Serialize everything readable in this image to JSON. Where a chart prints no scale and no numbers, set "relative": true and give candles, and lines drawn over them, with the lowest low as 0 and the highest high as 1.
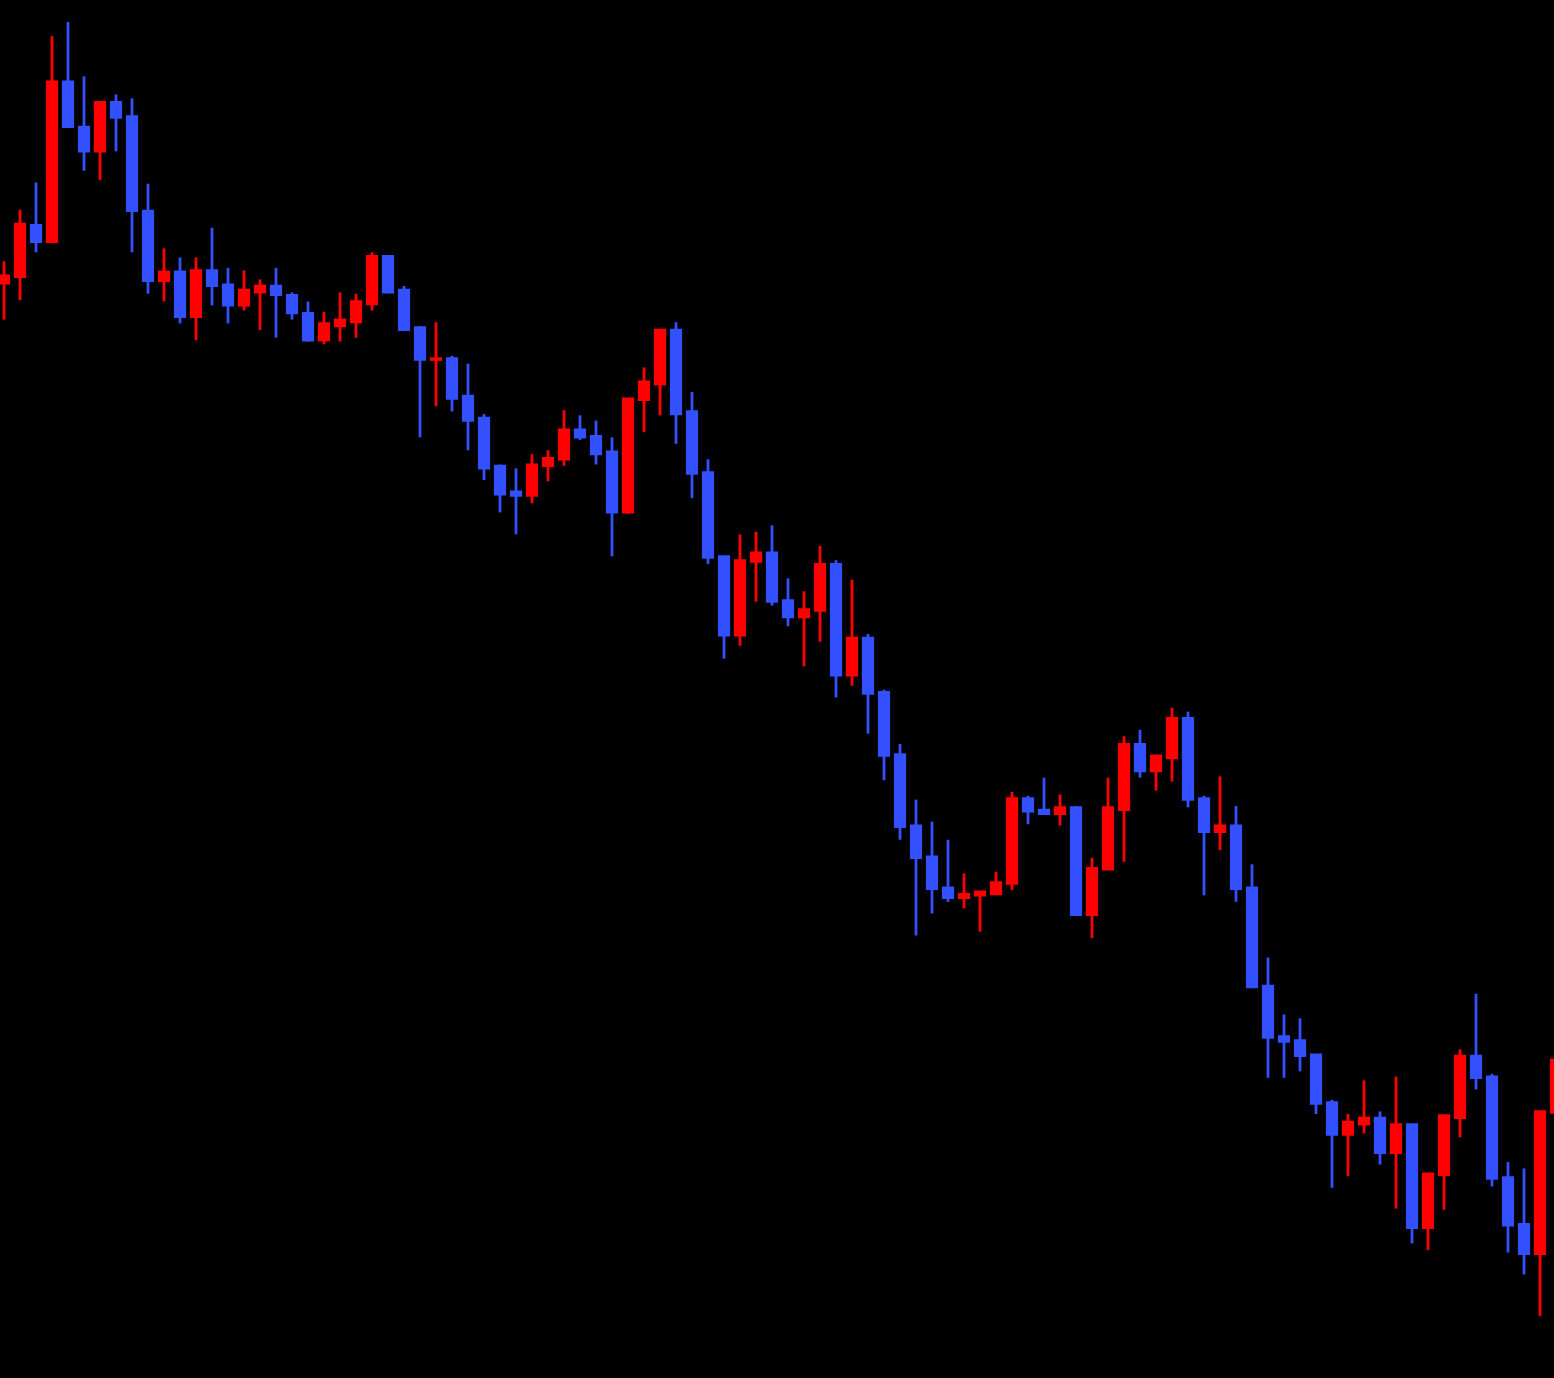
{
  "chart_data": {
    "type": "candlestick",
    "relative": true,
    "categories": [
      null,
      null,
      null,
      null,
      null,
      null,
      null,
      null,
      null,
      null,
      null,
      null,
      null,
      null,
      null,
      null,
      null,
      null,
      null,
      null,
      null,
      null,
      null,
      null,
      null,
      null,
      null,
      null,
      null,
      null,
      null,
      null,
      null,
      null,
      null,
      null,
      null,
      null,
      null,
      null,
      null,
      null,
      null,
      null,
      null,
      null,
      null,
      null,
      null,
      null,
      null,
      null,
      null,
      null,
      null,
      null,
      null,
      null,
      null,
      null,
      null,
      null,
      null,
      null,
      null,
      null,
      null,
      null,
      null,
      null,
      null,
      null,
      null,
      null,
      null,
      null,
      null,
      null,
      null,
      null,
      null,
      null,
      null,
      null,
      null,
      null,
      null,
      null,
      null,
      null,
      null,
      null,
      null,
      null,
      null,
      null,
      null,
      null
    ],
    "ohlc": [
      [
        0.798,
        0.815,
        0.77,
        0.804
      ],
      [
        0.803,
        0.855,
        0.785,
        0.844
      ],
      [
        0.843,
        0.876,
        0.822,
        0.83
      ],
      [
        0.83,
        0.989,
        0.829,
        0.954
      ],
      [
        0.954,
        1.0,
        0.919,
        0.919
      ],
      [
        0.919,
        0.958,
        0.885,
        0.9
      ],
      [
        0.9,
        0.938,
        0.878,
        0.938
      ],
      [
        0.938,
        0.944,
        0.9,
        0.926
      ],
      [
        0.927,
        0.941,
        0.822,
        0.854
      ],
      [
        0.854,
        0.875,
        0.79,
        0.8
      ],
      [
        0.8,
        0.825,
        0.784,
        0.807
      ],
      [
        0.807,
        0.818,
        0.767,
        0.772
      ],
      [
        0.772,
        0.818,
        0.754,
        0.808
      ],
      [
        0.808,
        0.841,
        0.781,
        0.796
      ],
      [
        0.797,
        0.81,
        0.767,
        0.781
      ],
      [
        0.781,
        0.808,
        0.777,
        0.793
      ],
      [
        0.791,
        0.801,
        0.762,
        0.796
      ],
      [
        0.796,
        0.81,
        0.756,
        0.789
      ],
      [
        0.789,
        0.791,
        0.77,
        0.775
      ],
      [
        0.775,
        0.784,
        0.753,
        0.754
      ],
      [
        0.754,
        0.776,
        0.751,
        0.767
      ],
      [
        0.765,
        0.791,
        0.753,
        0.77
      ],
      [
        0.768,
        0.79,
        0.756,
        0.784
      ],
      [
        0.782,
        0.822,
        0.777,
        0.819
      ],
      [
        0.819,
        0.819,
        0.791,
        0.791
      ],
      [
        0.793,
        0.796,
        0.762,
        0.762
      ],
      [
        0.764,
        0.765,
        0.679,
        0.739
      ],
      [
        0.739,
        0.768,
        0.703,
        0.74
      ],
      [
        0.74,
        0.742,
        0.699,
        0.709
      ],
      [
        0.711,
        0.736,
        0.669,
        0.692
      ],
      [
        0.694,
        0.697,
        0.646,
        0.655
      ],
      [
        0.657,
        0.658,
        0.621,
        0.635
      ],
      [
        0.637,
        0.655,
        0.604,
        0.634
      ],
      [
        0.634,
        0.666,
        0.628,
        0.658
      ],
      [
        0.657,
        0.669,
        0.645,
        0.663
      ],
      [
        0.662,
        0.7,
        0.657,
        0.685
      ],
      [
        0.685,
        0.696,
        0.677,
        0.679
      ],
      [
        0.68,
        0.692,
        0.658,
        0.666
      ],
      [
        0.668,
        0.679,
        0.587,
        0.621
      ],
      [
        0.621,
        0.709,
        0.62,
        0.709
      ],
      [
        0.708,
        0.733,
        0.683,
        0.722
      ],
      [
        0.72,
        0.762,
        0.696,
        0.762
      ],
      [
        0.762,
        0.768,
        0.674,
        0.697
      ],
      [
        0.699,
        0.714,
        0.632,
        0.651
      ],
      [
        0.652,
        0.662,
        0.581,
        0.586
      ],
      [
        0.587,
        0.587,
        0.508,
        0.526
      ],
      [
        0.526,
        0.604,
        0.518,
        0.584
      ],
      [
        0.583,
        0.606,
        0.552,
        0.59
      ],
      [
        0.59,
        0.611,
        0.549,
        0.552
      ],
      [
        0.553,
        0.57,
        0.533,
        0.54
      ],
      [
        0.54,
        0.56,
        0.502,
        0.546
      ],
      [
        0.545,
        0.595,
        0.521,
        0.581
      ],
      [
        0.581,
        0.584,
        0.478,
        0.495
      ],
      [
        0.495,
        0.569,
        0.487,
        0.524
      ],
      [
        0.524,
        0.527,
        0.45,
        0.481
      ],
      [
        0.482,
        0.484,
        0.414,
        0.433
      ],
      [
        0.434,
        0.442,
        0.368,
        0.378
      ],
      [
        0.379,
        0.399,
        0.294,
        0.354
      ],
      [
        0.355,
        0.382,
        0.311,
        0.33
      ],
      [
        0.331,
        0.368,
        0.32,
        0.323
      ],
      [
        0.323,
        0.342,
        0.315,
        0.326
      ],
      [
        0.325,
        0.328,
        0.297,
        0.328
      ],
      [
        0.326,
        0.343,
        0.326,
        0.335
      ],
      [
        0.334,
        0.405,
        0.329,
        0.4
      ],
      [
        0.4,
        0.402,
        0.38,
        0.39
      ],
      [
        0.391,
        0.416,
        0.388,
        0.388
      ],
      [
        0.388,
        0.403,
        0.379,
        0.393
      ],
      [
        0.393,
        0.394,
        0.31,
        0.31
      ],
      [
        0.31,
        0.354,
        0.292,
        0.346
      ],
      [
        0.345,
        0.416,
        0.345,
        0.393
      ],
      [
        0.391,
        0.448,
        0.351,
        0.442
      ],
      [
        0.442,
        0.453,
        0.416,
        0.421
      ],
      [
        0.421,
        0.433,
        0.406,
        0.433
      ],
      [
        0.431,
        0.47,
        0.413,
        0.462
      ],
      [
        0.462,
        0.467,
        0.393,
        0.399
      ],
      [
        0.4,
        0.402,
        0.325,
        0.374
      ],
      [
        0.374,
        0.417,
        0.36,
        0.379
      ],
      [
        0.379,
        0.394,
        0.32,
        0.33
      ],
      [
        0.331,
        0.349,
        0.254,
        0.254
      ],
      [
        0.255,
        0.277,
        0.184,
        0.215
      ],
      [
        0.216,
        0.233,
        0.184,
        0.212
      ],
      [
        0.213,
        0.23,
        0.189,
        0.201
      ],
      [
        0.202,
        0.202,
        0.156,
        0.164
      ],
      [
        0.165,
        0.167,
        0.099,
        0.14
      ],
      [
        0.14,
        0.156,
        0.108,
        0.15
      ],
      [
        0.148,
        0.182,
        0.141,
        0.153
      ],
      [
        0.153,
        0.158,
        0.117,
        0.126
      ],
      [
        0.126,
        0.185,
        0.083,
        0.148
      ],
      [
        0.148,
        0.148,
        0.056,
        0.068
      ],
      [
        0.068,
        0.11,
        0.051,
        0.11
      ],
      [
        0.109,
        0.155,
        0.082,
        0.155
      ],
      [
        0.153,
        0.206,
        0.138,
        0.201
      ],
      [
        0.201,
        0.249,
        0.175,
        0.184
      ],
      [
        0.185,
        0.187,
        0.1,
        0.106
      ],
      [
        0.107,
        0.119,
        0.049,
        0.07
      ],
      [
        0.071,
        0.114,
        0.032,
        0.048
      ],
      [
        0.048,
        0.158,
        0.0,
        0.158
      ],
      [
        0.157,
        0.198,
        0.157,
        0.198
      ]
    ],
    "colors": [
      "#ff0000",
      "#ff0000",
      "#3350ff",
      "#ff0000",
      "#3350ff",
      "#3350ff",
      "#ff0000",
      "#3350ff",
      "#3350ff",
      "#3350ff",
      "#ff0000",
      "#3350ff",
      "#ff0000",
      "#3350ff",
      "#3350ff",
      "#ff0000",
      "#ff0000",
      "#3350ff",
      "#3350ff",
      "#3350ff",
      "#ff0000",
      "#ff0000",
      "#ff0000",
      "#ff0000",
      "#3350ff",
      "#3350ff",
      "#3350ff",
      "#ff0000",
      "#3350ff",
      "#3350ff",
      "#3350ff",
      "#3350ff",
      "#3350ff",
      "#ff0000",
      "#ff0000",
      "#ff0000",
      "#3350ff",
      "#3350ff",
      "#3350ff",
      "#ff0000",
      "#ff0000",
      "#ff0000",
      "#3350ff",
      "#3350ff",
      "#3350ff",
      "#3350ff",
      "#ff0000",
      "#ff0000",
      "#3350ff",
      "#3350ff",
      "#ff0000",
      "#ff0000",
      "#3350ff",
      "#ff0000",
      "#3350ff",
      "#3350ff",
      "#3350ff",
      "#3350ff",
      "#3350ff",
      "#3350ff",
      "#ff0000",
      "#ff0000",
      "#ff0000",
      "#ff0000",
      "#3350ff",
      "#3350ff",
      "#ff0000",
      "#3350ff",
      "#ff0000",
      "#ff0000",
      "#ff0000",
      "#3350ff",
      "#ff0000",
      "#ff0000",
      "#3350ff",
      "#3350ff",
      "#ff0000",
      "#3350ff",
      "#3350ff",
      "#3350ff",
      "#3350ff",
      "#3350ff",
      "#3350ff",
      "#3350ff",
      "#ff0000",
      "#ff0000",
      "#3350ff",
      "#ff0000",
      "#3350ff",
      "#ff0000",
      "#ff0000",
      "#ff0000",
      "#3350ff",
      "#3350ff",
      "#3350ff",
      "#3350ff",
      "#ff0000",
      "#ff0000"
    ]
  }
}
